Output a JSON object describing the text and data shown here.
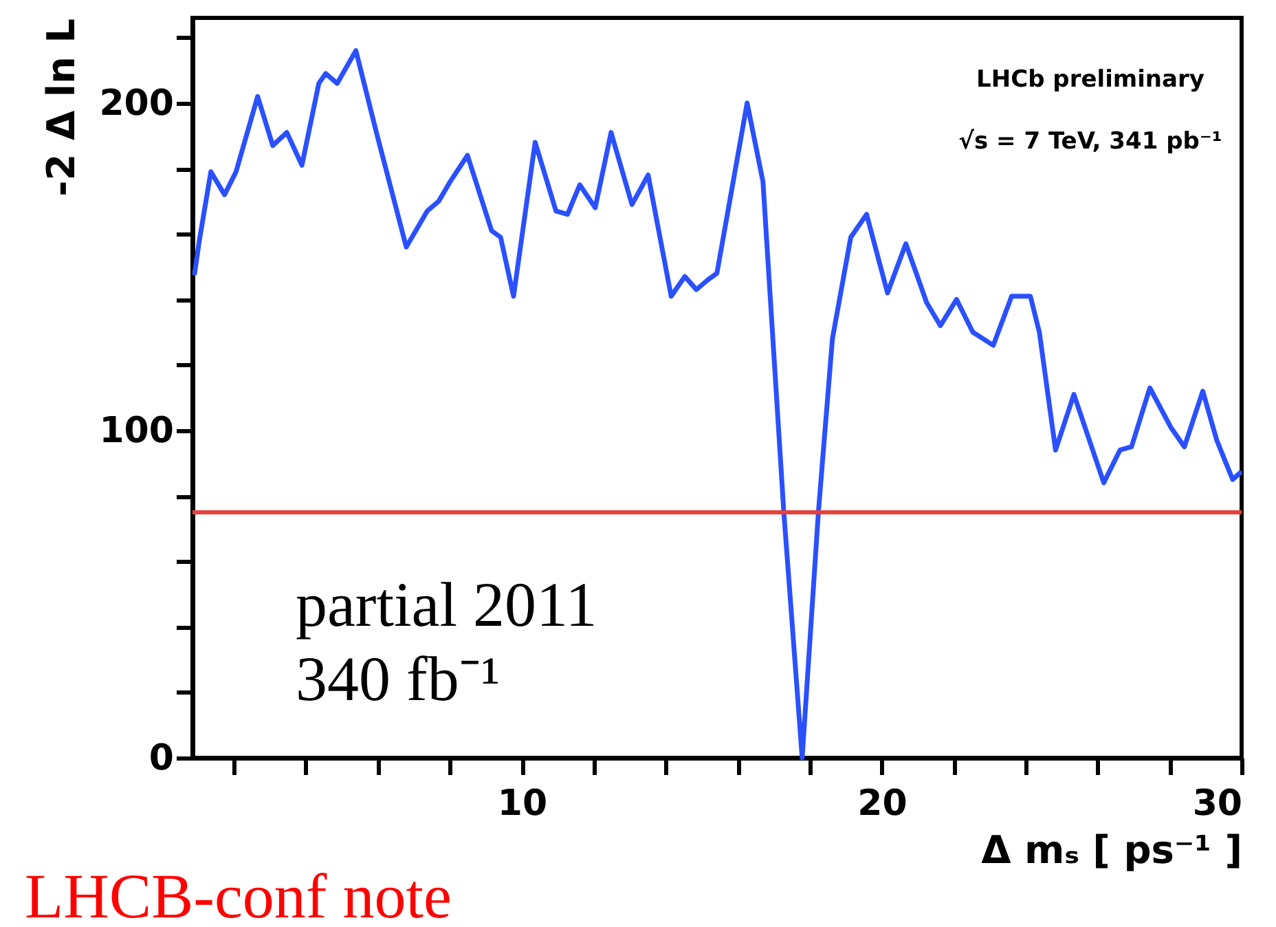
{
  "chart_data": {
    "type": "line",
    "xlabel": "Δ mₛ [ ps⁻¹ ]",
    "ylabel": "-2 Δ ln L",
    "xlim": [
      0.85,
      30
    ],
    "ylim": [
      0,
      226
    ],
    "xticks": [
      {
        "value": 2,
        "label": null
      },
      {
        "value": 4,
        "label": null
      },
      {
        "value": 6,
        "label": null
      },
      {
        "value": 8,
        "label": null
      },
      10,
      {
        "value": 12,
        "label": null
      },
      {
        "value": 14,
        "label": null
      },
      {
        "value": 16,
        "label": null
      },
      {
        "value": 18,
        "label": null
      },
      20,
      {
        "value": 22,
        "label": null
      },
      {
        "value": 24,
        "label": null
      },
      {
        "value": 26,
        "label": null
      },
      {
        "value": 28,
        "label": null
      },
      30
    ],
    "yticks": [
      0,
      {
        "value": 20,
        "label": null
      },
      {
        "value": 40,
        "label": null
      },
      {
        "value": 60,
        "label": null
      },
      {
        "value": 80,
        "label": null
      },
      100,
      {
        "value": 120,
        "label": null
      },
      {
        "value": 140,
        "label": null
      },
      {
        "value": 160,
        "label": null
      },
      {
        "value": 180,
        "label": null
      },
      200,
      {
        "value": 220,
        "label": null
      }
    ],
    "grid": false,
    "line_style": "solid",
    "marker": "none",
    "series": [
      {
        "color": "#2a50ff",
        "x": [
          0.91,
          1.04,
          1.36,
          1.74,
          2.06,
          2.66,
          3.08,
          3.47,
          3.89,
          4.36,
          4.55,
          4.87,
          5.39,
          5.96,
          6.41,
          6.79,
          7.37,
          7.69,
          8.01,
          8.49,
          9.16,
          9.41,
          9.77,
          10.37,
          10.95,
          11.27,
          11.61,
          12.04,
          12.48,
          13.06,
          13.51,
          14.15,
          14.53,
          14.85,
          15.17,
          15.42,
          15.55,
          16.26,
          16.7,
          17.28,
          17.79,
          18.24,
          18.63,
          19.14,
          19.58,
          20.16,
          20.67,
          21.25,
          21.63,
          22.08,
          22.53,
          23.1,
          23.61,
          24.13,
          24.38,
          24.83,
          25.34,
          26.17,
          26.62,
          26.94,
          27.45,
          28.03,
          28.41,
          28.92,
          29.31,
          29.75,
          29.95
        ],
        "values": [
          148,
          158,
          179,
          172,
          179,
          202,
          187,
          191,
          181,
          206,
          209,
          206,
          216,
          191,
          172,
          156,
          167,
          170,
          176,
          184,
          161,
          159,
          141,
          188,
          167,
          166,
          175,
          168,
          191,
          169,
          178,
          141,
          147,
          143,
          146,
          148,
          156,
          200,
          176,
          75,
          0,
          75,
          128,
          159,
          166,
          142,
          157,
          139,
          132,
          140,
          130,
          126,
          141,
          141,
          130,
          94,
          111,
          84,
          94,
          95,
          113,
          101,
          95,
          112,
          97,
          85,
          87
        ]
      }
    ],
    "ref_lines": [
      {
        "axis": "y",
        "value": 75,
        "color": "#e8403a",
        "line_style": "solid"
      }
    ],
    "annotations": [
      "LHCb preliminary",
      "√s = 7 TeV, 341 pb⁻¹",
      "partial 2011",
      "340 fb⁻¹",
      "LHCB-conf note"
    ]
  }
}
